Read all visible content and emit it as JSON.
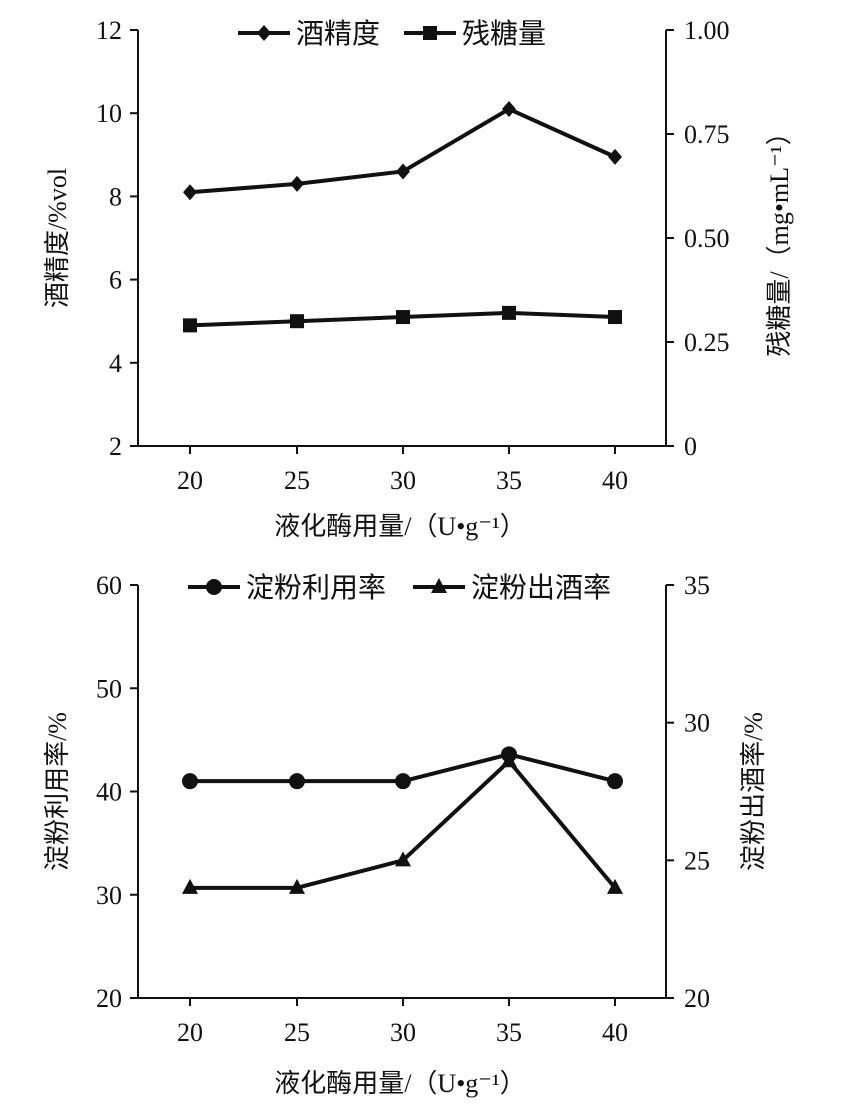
{
  "chart_data": [
    {
      "type": "line",
      "categories": [
        "20",
        "25",
        "30",
        "35",
        "40"
      ],
      "xlabel": "液化酶用量/（U•g⁻¹）",
      "ylabel_left": "酒精度/%vol",
      "ylabel_right": "残糖量/（mg•mL⁻¹）",
      "ylim_left": [
        2,
        12
      ],
      "yticks_left": [
        "2",
        "4",
        "6",
        "8",
        "10",
        "12"
      ],
      "ylim_right": [
        0,
        1.0
      ],
      "yticks_right": [
        "0",
        "0.25",
        "0.50",
        "0.75",
        "1.00"
      ],
      "series": [
        {
          "name": "酒精度",
          "axis": "left",
          "marker": "diamond",
          "values": [
            8.1,
            8.3,
            8.6,
            10.1,
            8.95
          ]
        },
        {
          "name": "残糖量",
          "axis": "right",
          "marker": "square",
          "values": [
            0.29,
            0.3,
            0.31,
            0.32,
            0.31
          ]
        }
      ]
    },
    {
      "type": "line",
      "categories": [
        "20",
        "25",
        "30",
        "35",
        "40"
      ],
      "xlabel": "液化酶用量/（U•g⁻¹）",
      "ylabel_left": "淀粉利用率/%",
      "ylabel_right": "淀粉出酒率/%",
      "ylim_left": [
        20,
        60
      ],
      "yticks_left": [
        "20",
        "30",
        "40",
        "50",
        "60"
      ],
      "ylim_right": [
        20,
        35
      ],
      "yticks_right": [
        "20",
        "25",
        "30",
        "35"
      ],
      "series": [
        {
          "name": "淀粉利用率",
          "axis": "left",
          "marker": "circle",
          "values": [
            41,
            41,
            41,
            43.6,
            41
          ]
        },
        {
          "name": "淀粉出酒率",
          "axis": "right",
          "marker": "triangle",
          "values": [
            24,
            24,
            25,
            28.6,
            24
          ]
        }
      ]
    }
  ]
}
